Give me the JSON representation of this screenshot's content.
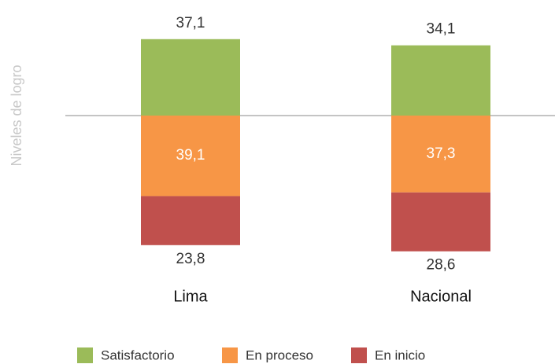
{
  "chart_data": {
    "type": "bar",
    "y_label": "Niveles de logro",
    "categories": [
      "Lima",
      "Nacional"
    ],
    "series": [
      {
        "name": "Satisfactorio",
        "color": "#9bbb59",
        "values": [
          37.1,
          34.1
        ],
        "value_labels": [
          "37,1",
          "34,1"
        ]
      },
      {
        "name": "En proceso",
        "color": "#f79646",
        "values": [
          39.1,
          37.3
        ],
        "value_labels": [
          "39,1",
          "37,3"
        ]
      },
      {
        "name": "En inicio",
        "color": "#c0504d",
        "values": [
          23.8,
          28.6
        ],
        "value_labels": [
          "23,8",
          "28,6"
        ]
      }
    ]
  }
}
